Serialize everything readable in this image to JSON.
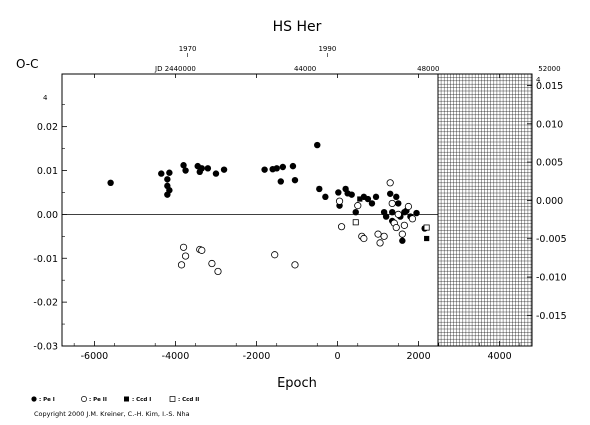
{
  "chart_data": {
    "type": "scatter",
    "title": "HS Her",
    "xlabel": "Epoch",
    "ylabel": "O-C",
    "xlim": [
      -6800,
      4800
    ],
    "ylim": [
      -0.03,
      0.032
    ],
    "x_ticks": [
      -6000,
      -4000,
      -2000,
      0,
      2000,
      4000
    ],
    "x_tick_labels": [
      "-6000",
      "-4000",
      "-2000",
      "0",
      "2000",
      "4000"
    ],
    "y_ticks": [
      -0.03,
      -0.02,
      -0.01,
      0.0,
      0.01,
      0.02
    ],
    "y_tick_labels": [
      "-0.03",
      "-0.02",
      "-0.01",
      "0.00",
      "0.01",
      "0.02"
    ],
    "right_y_ticks": [
      -0.015,
      -0.01,
      -0.005,
      0.0,
      0.005,
      0.01,
      0.015
    ],
    "right_y_tick_labels": [
      "-0.015",
      "-0.010",
      "-0.005",
      "0.000",
      "0.005",
      "0.010",
      "0.015"
    ],
    "top_year_axis": [
      {
        "pos": -3700,
        "label": "1970"
      },
      {
        "pos": -250,
        "label": "1990"
      }
    ],
    "top_jd_axis": {
      "prefix": "JD 2440000",
      "prefix_pos": -4000,
      "labels": [
        {
          "pos": -800,
          "label": "44000"
        },
        {
          "pos": 2240,
          "label": "48000"
        },
        {
          "pos": 5230,
          "label": "52000"
        }
      ]
    },
    "grid_region_x_start": 2480,
    "zero_line": 0.0,
    "series": [
      {
        "name": ": Pe I",
        "marker": "filled-circle",
        "x": [
          -5600,
          -4350,
          -4200,
          -4200,
          -4200,
          -4150,
          -4150,
          -3800,
          -3750,
          -3450,
          -3400,
          -3350,
          -3200,
          -3000,
          -2800,
          -1800,
          -1600,
          -1500,
          -1400,
          -1350,
          -1100,
          -1050,
          -500,
          -450,
          -300,
          20,
          50,
          200,
          250,
          350,
          450,
          650,
          750,
          850,
          950,
          1150,
          1200,
          1300,
          1350,
          1350,
          1450,
          1500,
          1550,
          1600,
          1650,
          1700,
          1800,
          1950,
          2150
        ],
        "y": [
          0.0072,
          0.0093,
          0.008,
          0.0065,
          0.0045,
          0.0095,
          0.0055,
          0.0112,
          0.01,
          0.011,
          0.0097,
          0.0105,
          0.0105,
          0.0093,
          0.0102,
          0.0102,
          0.0103,
          0.0105,
          0.0075,
          0.0108,
          0.011,
          0.0078,
          0.0158,
          0.0058,
          0.004,
          0.005,
          0.002,
          0.0058,
          0.0048,
          0.0045,
          0.0005,
          0.004,
          0.0035,
          0.0025,
          0.004,
          0.0005,
          -0.0005,
          0.0047,
          0.0005,
          -0.0015,
          0.004,
          0.0025,
          -0.0005,
          -0.006,
          0.0005,
          0.0008,
          -0.0005,
          0.0003,
          -0.0032
        ]
      },
      {
        "name": ": Pe II",
        "marker": "open-circle",
        "x": [
          -3850,
          -3800,
          -3750,
          -3400,
          -3350,
          -3100,
          -2950,
          -1550,
          -1050,
          50,
          100,
          500,
          600,
          650,
          1000,
          1050,
          1150,
          1300,
          1350,
          1400,
          1450,
          1500,
          1600,
          1650,
          1750,
          1850
        ],
        "y": [
          -0.0115,
          -0.0075,
          -0.0095,
          -0.008,
          -0.0082,
          -0.0112,
          -0.013,
          -0.0092,
          -0.0115,
          0.003,
          -0.0028,
          0.002,
          -0.005,
          -0.0055,
          -0.0045,
          -0.0065,
          -0.005,
          0.0072,
          0.0025,
          -0.002,
          -0.003,
          0.0,
          -0.0045,
          -0.0025,
          0.0018,
          -0.001
        ]
      },
      {
        "name": ": Ccd I",
        "marker": "filled-square",
        "x": [
          550,
          2200
        ],
        "y": [
          0.0035,
          -0.0055
        ]
      },
      {
        "name": ": Ccd II",
        "marker": "open-square",
        "x": [
          450,
          2200
        ],
        "y": [
          -0.0018,
          -0.003
        ]
      }
    ],
    "legend_position": "bottom-left",
    "copyright": "Copyright 2000 J.M. Kreiner, C.-H. Kim, I.-S. Nha",
    "corner_marks": [
      "4",
      "4"
    ]
  }
}
